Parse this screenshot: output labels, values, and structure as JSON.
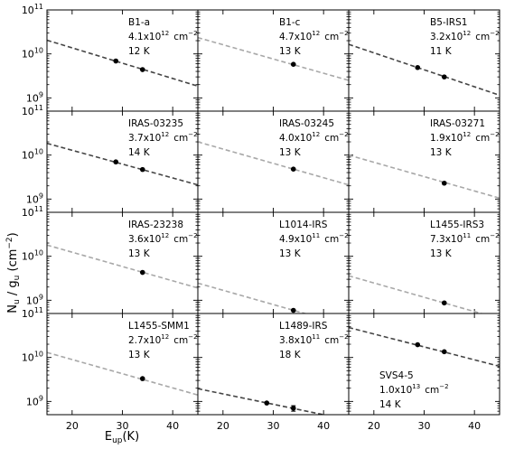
{
  "figure": {
    "xlabel_main": "E",
    "xlabel_sub": "up",
    "xlabel_unit": "(K)",
    "ylabel_main": "N",
    "ylabel_sub1": "u",
    "ylabel_mid": " / g",
    "ylabel_sub2": "u",
    "ylabel_unit": " (cm",
    "ylabel_sup": "−2",
    "ylabel_close": ")"
  },
  "chart_data": {
    "type": "scatter",
    "layout": "4x3 grid of panels, shared axes",
    "xlim": [
      15,
      45
    ],
    "ylim": [
      500000000,
      100000000000
    ],
    "yscale": "log",
    "xticks": [
      20,
      30,
      40
    ],
    "yticks": [
      {
        "value": 1000000000,
        "base": "10",
        "exp": "9"
      },
      {
        "value": 10000000000,
        "base": "10",
        "exp": "10"
      },
      {
        "value": 100000000000,
        "base": "10",
        "exp": "11"
      }
    ],
    "colors": {
      "dark_line": "#444444",
      "light_line": "#a8a8a8",
      "points": "#000000"
    },
    "panels": [
      {
        "name": "B1-a",
        "N_mant": "4.1x10",
        "N_exp": "12",
        "N_unit": "cm",
        "N_unit_exp": "−2",
        "T": "12 K",
        "line_style": "dark",
        "line": [
          [
            15,
            20500000000
          ],
          [
            45,
            1850000000
          ]
        ],
        "points": [
          {
            "x": 28.7,
            "y": 6900000000
          },
          {
            "x": 34.0,
            "y": 4400000000
          }
        ]
      },
      {
        "name": "B1-c",
        "N_mant": "4.7x10",
        "N_exp": "12",
        "N_unit": "cm",
        "N_unit_exp": "−2",
        "T": "13 K",
        "line_style": "light",
        "line": [
          [
            15,
            23500000000
          ],
          [
            45,
            2500000000
          ]
        ],
        "points": [
          {
            "x": 34.0,
            "y": 5800000000
          }
        ]
      },
      {
        "name": "B5-IRS1",
        "N_mant": "3.2x10",
        "N_exp": "12",
        "N_unit": "cm",
        "N_unit_exp": "−2",
        "T": "11 K",
        "line_style": "dark",
        "line": [
          [
            15,
            16500000000
          ],
          [
            45,
            1150000000
          ]
        ],
        "points": [
          {
            "x": 28.7,
            "y": 4900000000
          },
          {
            "x": 34.0,
            "y": 3000000000
          }
        ]
      },
      {
        "name": "IRAS-03235",
        "N_mant": "3.7x10",
        "N_exp": "12",
        "N_unit": "cm",
        "N_unit_exp": "−2",
        "T": "14 K",
        "line_style": "dark",
        "line": [
          [
            15,
            18500000000
          ],
          [
            45,
            2100000000
          ]
        ],
        "points": [
          {
            "x": 28.7,
            "y": 7000000000
          },
          {
            "x": 34.0,
            "y": 4700000000
          }
        ]
      },
      {
        "name": "IRAS-03245",
        "N_mant": "4.0x10",
        "N_exp": "12",
        "N_unit": "cm",
        "N_unit_exp": "−2",
        "T": "13 K",
        "line_style": "light",
        "line": [
          [
            15,
            20000000000
          ],
          [
            45,
            2100000000
          ]
        ],
        "points": [
          {
            "x": 34.0,
            "y": 4800000000
          }
        ]
      },
      {
        "name": "IRAS-03271",
        "N_mant": "1.9x10",
        "N_exp": "12",
        "N_unit": "cm",
        "N_unit_exp": "−2",
        "T": "13 K",
        "line_style": "light",
        "line": [
          [
            15,
            10000000000
          ],
          [
            45,
            1050000000
          ]
        ],
        "points": [
          {
            "x": 34.0,
            "y": 2300000000
          }
        ]
      },
      {
        "name": "IRAS-23238",
        "N_mant": "3.6x10",
        "N_exp": "12",
        "N_unit": "cm",
        "N_unit_exp": "−2",
        "T": "13 K",
        "line_style": "light",
        "line": [
          [
            15,
            18000000000
          ],
          [
            45,
            1900000000
          ]
        ],
        "points": [
          {
            "x": 34.0,
            "y": 4300000000
          }
        ]
      },
      {
        "name": "L1014-IRS",
        "N_mant": "4.9x10",
        "N_exp": "11",
        "N_unit": "cm",
        "N_unit_exp": "−2",
        "T": "13 K",
        "line_style": "light",
        "line": [
          [
            15,
            2450000000
          ],
          [
            45,
            260000000
          ]
        ],
        "points": [
          {
            "x": 34.0,
            "y": 590000000
          }
        ]
      },
      {
        "name": "L1455-IRS3",
        "N_mant": "7.3x10",
        "N_exp": "11",
        "N_unit": "cm",
        "N_unit_exp": "−2",
        "T": "13 K",
        "line_style": "light",
        "line": [
          [
            15,
            3600000000
          ],
          [
            45,
            380000000
          ]
        ],
        "points": [
          {
            "x": 34.0,
            "y": 870000000
          }
        ]
      },
      {
        "name": "L1455-SMM1",
        "N_mant": "2.7x10",
        "N_exp": "12",
        "N_unit": "cm",
        "N_unit_exp": "−2",
        "T": "13 K",
        "line_style": "light",
        "line": [
          [
            15,
            13000000000
          ],
          [
            45,
            1400000000
          ]
        ],
        "points": [
          {
            "x": 34.0,
            "y": 3300000000
          }
        ]
      },
      {
        "name": "L1489-IRS",
        "N_mant": "3.8x10",
        "N_exp": "11",
        "N_unit": "cm",
        "N_unit_exp": "−2",
        "T": "18 K",
        "line_style": "dark",
        "line": [
          [
            15,
            1950000000
          ],
          [
            45,
            380000000
          ]
        ],
        "points": [
          {
            "x": 28.7,
            "y": 920000000,
            "yerr": 0
          },
          {
            "x": 34.0,
            "y": 700000000,
            "yerr": 100000000
          }
        ]
      },
      {
        "name": "SVS4-5",
        "N_mant": "1.0x10",
        "N_exp": "13",
        "N_unit": "cm",
        "N_unit_exp": "−2",
        "T": "14 K",
        "line_style": "dark",
        "label_position": "bottom-left",
        "line": [
          [
            15,
            48000000000
          ],
          [
            45,
            6300000000
          ]
        ],
        "points": [
          {
            "x": 28.7,
            "y": 19500000000
          },
          {
            "x": 34.0,
            "y": 13500000000
          }
        ]
      }
    ]
  }
}
